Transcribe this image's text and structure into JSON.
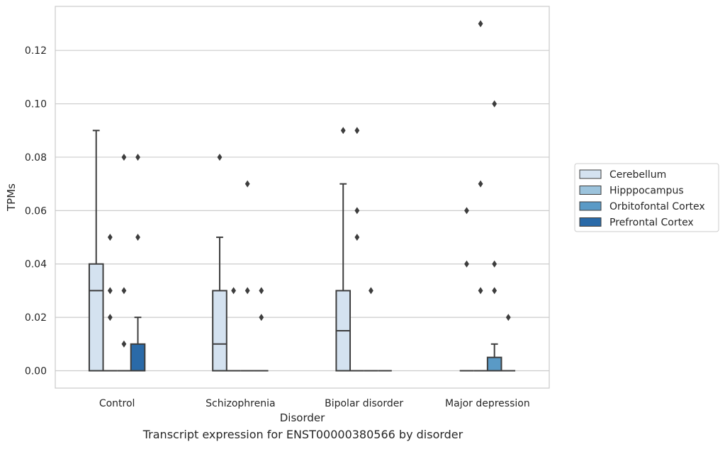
{
  "chart_data": {
    "type": "box",
    "caption": "Transcript expression for ENST00000380566 by disorder",
    "xlabel": "Disorder",
    "ylabel": "TPMs",
    "ylim": [
      -0.0065,
      0.1365
    ],
    "yticks": [
      0.0,
      0.02,
      0.04,
      0.06,
      0.08,
      0.1,
      0.12
    ],
    "yticklabels": [
      "0.00",
      "0.02",
      "0.04",
      "0.06",
      "0.08",
      "0.10",
      "0.12"
    ],
    "grid": "y",
    "legend_position": "right-center",
    "categories": [
      "Control",
      "Schizophrenia",
      "Bipolar disorder",
      "Major depression"
    ],
    "series": [
      {
        "name": "Cerebellum",
        "color": "#d4e2f0",
        "boxes": [
          {
            "q1": 0.0,
            "median": 0.03,
            "q3": 0.04,
            "whisker_low": 0.0,
            "whisker_high": 0.09,
            "outliers": []
          },
          {
            "q1": 0.0,
            "median": 0.01,
            "q3": 0.03,
            "whisker_low": 0.0,
            "whisker_high": 0.05,
            "outliers": [
              0.08
            ]
          },
          {
            "q1": 0.0,
            "median": 0.015,
            "q3": 0.03,
            "whisker_low": 0.0,
            "whisker_high": 0.07,
            "outliers": [
              0.09
            ]
          },
          {
            "q1": 0.0,
            "median": 0.0,
            "q3": 0.0,
            "whisker_low": 0.0,
            "whisker_high": 0.0,
            "outliers": [
              0.06,
              0.04
            ]
          }
        ]
      },
      {
        "name": "Hipppocampus",
        "color": "#9cc3dc",
        "boxes": [
          {
            "q1": 0.0,
            "median": 0.0,
            "q3": 0.0,
            "whisker_low": 0.0,
            "whisker_high": 0.0,
            "outliers": [
              0.05,
              0.03,
              0.02
            ]
          },
          {
            "q1": 0.0,
            "median": 0.0,
            "q3": 0.0,
            "whisker_low": 0.0,
            "whisker_high": 0.0,
            "outliers": [
              0.03
            ]
          },
          {
            "q1": 0.0,
            "median": 0.0,
            "q3": 0.0,
            "whisker_low": 0.0,
            "whisker_high": 0.0,
            "outliers": [
              0.09,
              0.06,
              0.05
            ]
          },
          {
            "q1": 0.0,
            "median": 0.0,
            "q3": 0.0,
            "whisker_low": 0.0,
            "whisker_high": 0.0,
            "outliers": [
              0.13,
              0.07,
              0.03
            ]
          }
        ]
      },
      {
        "name": "Orbitofontal Cortex",
        "color": "#5a9ac6",
        "boxes": [
          {
            "q1": 0.0,
            "median": 0.0,
            "q3": 0.0,
            "whisker_low": 0.0,
            "whisker_high": 0.0,
            "outliers": [
              0.08,
              0.03,
              0.01
            ]
          },
          {
            "q1": 0.0,
            "median": 0.0,
            "q3": 0.0,
            "whisker_low": 0.0,
            "whisker_high": 0.0,
            "outliers": [
              0.07,
              0.03
            ]
          },
          {
            "q1": 0.0,
            "median": 0.0,
            "q3": 0.0,
            "whisker_low": 0.0,
            "whisker_high": 0.0,
            "outliers": [
              0.03
            ]
          },
          {
            "q1": 0.0,
            "median": 0.0,
            "q3": 0.005,
            "whisker_low": 0.0,
            "whisker_high": 0.01,
            "outliers": [
              0.1,
              0.04,
              0.03
            ]
          }
        ]
      },
      {
        "name": "Prefrontal Cortex",
        "color": "#2a6aa8",
        "boxes": [
          {
            "q1": 0.0,
            "median": 0.0,
            "q3": 0.01,
            "whisker_low": 0.0,
            "whisker_high": 0.02,
            "outliers": [
              0.08,
              0.05
            ]
          },
          {
            "q1": 0.0,
            "median": 0.0,
            "q3": 0.0,
            "whisker_low": 0.0,
            "whisker_high": 0.0,
            "outliers": [
              0.03,
              0.02
            ]
          },
          {
            "q1": 0.0,
            "median": 0.0,
            "q3": 0.0,
            "whisker_low": 0.0,
            "whisker_high": 0.0,
            "outliers": []
          },
          {
            "q1": 0.0,
            "median": 0.0,
            "q3": 0.0,
            "whisker_low": 0.0,
            "whisker_high": 0.0,
            "outliers": [
              0.02
            ]
          }
        ]
      }
    ]
  }
}
